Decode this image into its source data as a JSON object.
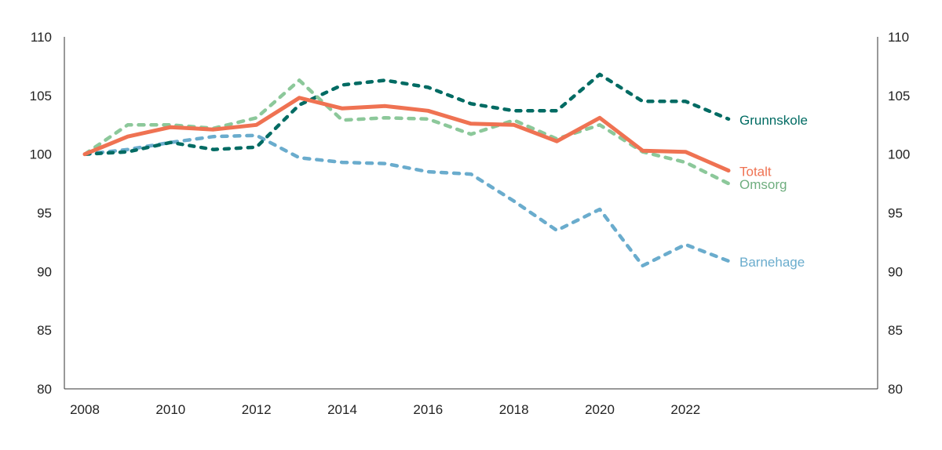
{
  "chart_data": {
    "type": "line",
    "title": "",
    "xlabel": "",
    "ylabel": "",
    "ylim": [
      80,
      110
    ],
    "yticks": [
      80,
      85,
      90,
      95,
      100,
      105,
      110
    ],
    "xlim": [
      2008,
      2023
    ],
    "xticks": [
      2008,
      2010,
      2012,
      2014,
      2016,
      2018,
      2020,
      2022
    ],
    "grid": false,
    "legend": "direct labels at right end of lines",
    "x": [
      2008,
      2009,
      2010,
      2011,
      2012,
      2013,
      2014,
      2015,
      2016,
      2017,
      2018,
      2019,
      2020,
      2021,
      2022,
      2023
    ],
    "series": [
      {
        "name": "Grunnskole",
        "color": "#006b63",
        "style": "dotted",
        "values": [
          100,
          100.2,
          101.0,
          100.4,
          100.6,
          104.2,
          105.9,
          106.3,
          105.7,
          104.3,
          103.7,
          103.7,
          106.8,
          104.5,
          104.5,
          103.0
        ]
      },
      {
        "name": "Totalt",
        "color": "#ef7252",
        "style": "solid",
        "values": [
          100,
          101.5,
          102.3,
          102.1,
          102.5,
          104.8,
          103.9,
          104.1,
          103.7,
          102.6,
          102.5,
          101.1,
          103.1,
          100.3,
          100.2,
          98.6
        ]
      },
      {
        "name": "Omsorg",
        "color": "#8cc89a",
        "style": "dashed",
        "values": [
          100,
          102.5,
          102.5,
          102.2,
          103.1,
          106.3,
          102.9,
          103.1,
          103.0,
          101.7,
          102.9,
          101.3,
          102.5,
          100.2,
          99.3,
          97.5
        ]
      },
      {
        "name": "Barnehage",
        "color": "#6aaccd",
        "style": "dashed",
        "values": [
          100,
          100.4,
          101.0,
          101.5,
          101.6,
          99.7,
          99.3,
          99.2,
          98.5,
          98.3,
          96.0,
          93.5,
          95.3,
          90.5,
          92.3,
          90.9
        ]
      }
    ]
  }
}
